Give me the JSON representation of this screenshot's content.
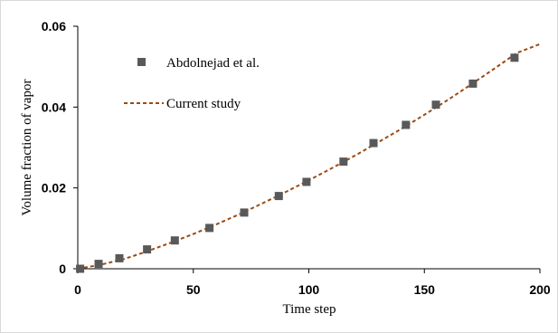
{
  "chart_data": {
    "type": "scatter",
    "title": "",
    "xlabel": "Time step",
    "ylabel": "Volume fraction of vapor",
    "xlim": [
      0,
      200
    ],
    "ylim": [
      0,
      0.06
    ],
    "x_ticks": [
      0,
      50,
      100,
      150,
      200
    ],
    "y_ticks": [
      0,
      0.02,
      0.04,
      0.06
    ],
    "x_tick_labels": [
      "0",
      "50",
      "100",
      "150",
      "200"
    ],
    "y_tick_labels": [
      "0",
      "0.02",
      "0.04",
      "0.06"
    ],
    "grid": false,
    "legend_position": "top-left",
    "series": [
      {
        "name": "Abdolnejad et al.",
        "type": "scatter",
        "marker": "square",
        "color": "#595959",
        "x": [
          1,
          9,
          18,
          30,
          42,
          57,
          72,
          87,
          99,
          115,
          128,
          142,
          155,
          171,
          189
        ],
        "y": [
          0.0,
          0.0012,
          0.0026,
          0.0048,
          0.007,
          0.0101,
          0.0139,
          0.018,
          0.0215,
          0.0265,
          0.0311,
          0.0356,
          0.0406,
          0.0458,
          0.0522
        ]
      },
      {
        "name": "Current study",
        "type": "line",
        "style": "dashed",
        "color": "#9c4a12",
        "x": [
          0,
          10,
          20,
          30,
          40,
          50,
          60,
          70,
          80,
          90,
          100,
          110,
          120,
          130,
          140,
          150,
          160,
          170,
          180,
          190,
          200
        ],
        "y": [
          0.0,
          0.001,
          0.0024,
          0.0043,
          0.0064,
          0.0086,
          0.011,
          0.0135,
          0.0162,
          0.019,
          0.0219,
          0.0249,
          0.028,
          0.0313,
          0.0346,
          0.0381,
          0.0417,
          0.0455,
          0.0494,
          0.0534,
          0.0556
        ]
      }
    ]
  }
}
